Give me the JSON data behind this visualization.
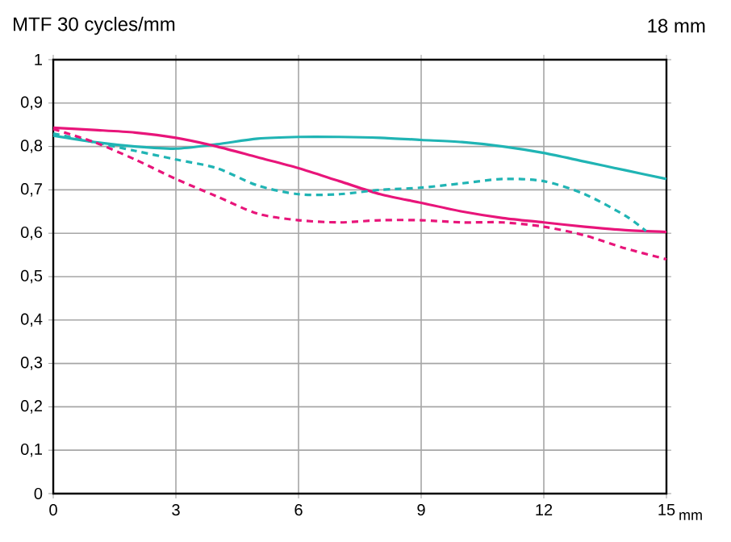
{
  "chart_data": {
    "type": "line",
    "title": "MTF 30 cycles/mm",
    "subtitle": "18 mm",
    "xlabel": "mm",
    "xlim": [
      0,
      15
    ],
    "xticks": [
      0,
      3,
      6,
      9,
      12,
      15
    ],
    "ylim": [
      0,
      1
    ],
    "yticks": [
      {
        "value": 0,
        "label": "0"
      },
      {
        "value": 0.1,
        "label": "0,1"
      },
      {
        "value": 0.2,
        "label": "0,2"
      },
      {
        "value": 0.3,
        "label": "0,3"
      },
      {
        "value": 0.4,
        "label": "0,4"
      },
      {
        "value": 0.5,
        "label": "0,5"
      },
      {
        "value": 0.6,
        "label": "0,6"
      },
      {
        "value": 0.7,
        "label": "0,7"
      },
      {
        "value": 0.8,
        "label": "0,8"
      },
      {
        "value": 0.9,
        "label": "0,9"
      },
      {
        "value": 1,
        "label": "1"
      }
    ],
    "grid": true,
    "x": [
      0,
      1,
      2,
      3,
      4,
      5,
      6,
      7,
      8,
      9,
      10,
      11,
      12,
      13,
      14,
      15
    ],
    "series": [
      {
        "color": "#20b4b4",
        "line_style": "solid",
        "values": [
          0.825,
          0.81,
          0.8,
          0.795,
          0.805,
          0.818,
          0.822,
          0.822,
          0.82,
          0.815,
          0.81,
          0.8,
          0.785,
          0.765,
          0.745,
          0.725
        ]
      },
      {
        "color": "#e8157a",
        "line_style": "solid",
        "values": [
          0.843,
          0.838,
          0.832,
          0.82,
          0.8,
          0.775,
          0.75,
          0.72,
          0.69,
          0.67,
          0.65,
          0.635,
          0.625,
          0.615,
          0.607,
          0.603
        ]
      },
      {
        "color": "#20b4b4",
        "line_style": "dashed",
        "x": [
          0,
          1,
          2,
          3,
          4,
          5,
          6,
          7,
          8,
          9,
          10,
          11,
          12,
          13,
          14,
          14.5
        ],
        "values": [
          0.83,
          0.81,
          0.79,
          0.77,
          0.75,
          0.71,
          0.69,
          0.69,
          0.7,
          0.705,
          0.715,
          0.725,
          0.72,
          0.69,
          0.64,
          0.605
        ]
      },
      {
        "color": "#e8157a",
        "line_style": "dashed",
        "values": [
          0.84,
          0.81,
          0.77,
          0.725,
          0.685,
          0.645,
          0.63,
          0.625,
          0.63,
          0.63,
          0.625,
          0.625,
          0.615,
          0.595,
          0.565,
          0.54
        ]
      }
    ]
  }
}
